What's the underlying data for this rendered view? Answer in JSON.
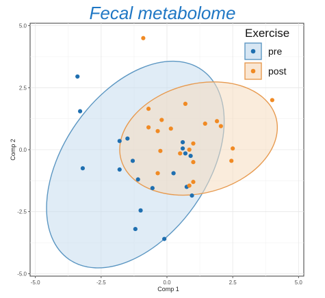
{
  "chart_data": {
    "type": "scatter",
    "title": "Fecal metabolome",
    "xlabel": "Comp 1",
    "ylabel": "Comp 2",
    "xlim": [
      -5.2,
      5.2
    ],
    "ylim": [
      -5.1,
      5.1
    ],
    "xticks": [
      -5.0,
      -2.5,
      0.0,
      2.5,
      5.0
    ],
    "yticks": [
      -5.0,
      -2.5,
      0.0,
      2.5,
      5.0
    ],
    "xtick_labels": [
      "-5.0",
      "-2.5",
      "0.0",
      "2.5",
      "5.0"
    ],
    "ytick_labels": [
      "-5.0",
      "-2.5",
      "0.0",
      "2.5",
      "5.0"
    ],
    "grid": true,
    "legend": {
      "title": "Exercise",
      "position": "top-right"
    },
    "series": [
      {
        "name": "pre",
        "color": "#1f6fb0",
        "ellipse_fill": "#c6dcee",
        "ellipse_stroke": "#5b96c2",
        "ellipse": {
          "center": [
            -1.2,
            -0.6
          ],
          "semi_axes": [
            4.4,
            2.9
          ],
          "angle_deg": -55
        },
        "points": [
          [
            -3.4,
            2.95
          ],
          [
            -3.3,
            1.55
          ],
          [
            -3.2,
            -0.75
          ],
          [
            -1.8,
            0.35
          ],
          [
            -1.5,
            0.45
          ],
          [
            -1.3,
            -0.45
          ],
          [
            -1.8,
            -0.8
          ],
          [
            -1.1,
            -1.2
          ],
          [
            -0.55,
            -1.55
          ],
          [
            0.6,
            0.3
          ],
          [
            0.6,
            0.05
          ],
          [
            0.9,
            -0.25
          ],
          [
            0.25,
            -0.95
          ],
          [
            0.7,
            -0.15
          ],
          [
            0.75,
            -1.5
          ],
          [
            0.95,
            -1.85
          ],
          [
            -1.0,
            -2.45
          ],
          [
            -1.2,
            -3.2
          ],
          [
            -0.1,
            -3.6
          ]
        ]
      },
      {
        "name": "post",
        "color": "#f08a24",
        "ellipse_fill": "#f6dcc0",
        "ellipse_stroke": "#e79a4f",
        "ellipse": {
          "center": [
            1.2,
            0.45
          ],
          "semi_axes": [
            3.05,
            2.2
          ],
          "angle_deg": -15
        },
        "points": [
          [
            -0.9,
            4.5
          ],
          [
            -0.7,
            1.65
          ],
          [
            -0.7,
            0.9
          ],
          [
            -0.35,
            0.75
          ],
          [
            0.15,
            0.85
          ],
          [
            0.7,
            1.85
          ],
          [
            -0.2,
            1.2
          ],
          [
            -0.25,
            -0.05
          ],
          [
            -0.35,
            -0.95
          ],
          [
            0.5,
            -0.15
          ],
          [
            1.0,
            0.25
          ],
          [
            0.85,
            0.0
          ],
          [
            1.0,
            -0.5
          ],
          [
            1.45,
            1.05
          ],
          [
            1.9,
            1.15
          ],
          [
            2.05,
            0.95
          ],
          [
            2.5,
            0.05
          ],
          [
            2.45,
            -0.45
          ],
          [
            1.0,
            -1.3
          ],
          [
            0.85,
            -1.45
          ],
          [
            4.0,
            2.0
          ]
        ]
      }
    ]
  }
}
